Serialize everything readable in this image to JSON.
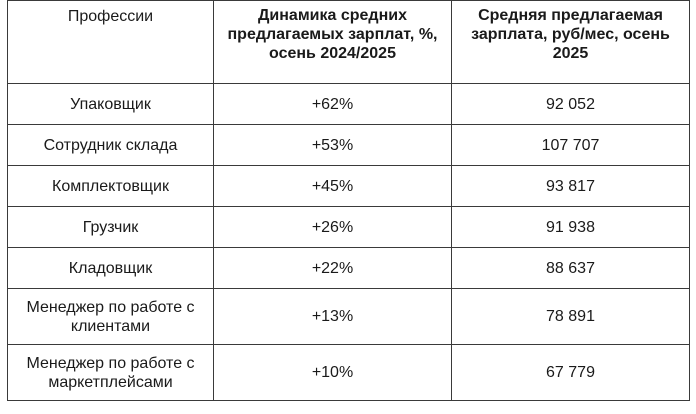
{
  "table": {
    "headers": [
      "Профессии",
      "Динамика средних предлагаемых зарплат, %, осень 2024/2025",
      "Средняя предлагаемая зарплата, руб/мес, осень 2025"
    ],
    "rows": [
      {
        "profession": "Упаковщик",
        "dynamics": "+62%",
        "salary": "92 052"
      },
      {
        "profession": "Сотрудник склада",
        "dynamics": "+53%",
        "salary": "107 707"
      },
      {
        "profession": "Комплектовщик",
        "dynamics": "+45%",
        "salary": "93 817"
      },
      {
        "profession": "Грузчик",
        "dynamics": "+26%",
        "salary": "91 938"
      },
      {
        "profession": "Кладовщик",
        "dynamics": "+22%",
        "salary": "88 637"
      },
      {
        "profession": "Менеджер по работе с клиентами",
        "dynamics": "+13%",
        "salary": "78 891"
      },
      {
        "profession": "Менеджер по работе с маркетплейсами",
        "dynamics": "+10%",
        "salary": "67 779"
      }
    ]
  }
}
